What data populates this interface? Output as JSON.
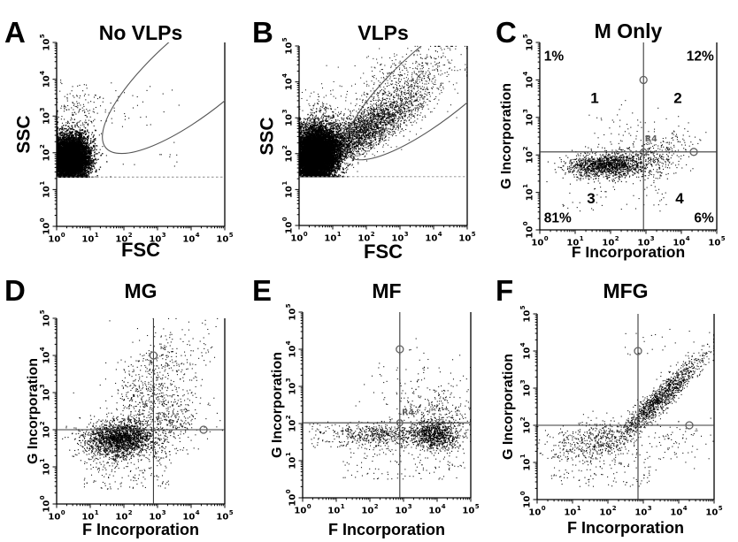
{
  "figure": {
    "background": "#ffffff",
    "ink": "#000000",
    "gate_curve_color": "#555555",
    "quadrant_line_color": "#3a3a3a",
    "dashed_line_color": "#8a8a8a",
    "handle_color": "#606060",
    "tick_base": "10",
    "tick_exponents": [
      "0",
      "1",
      "2",
      "3",
      "4",
      "5"
    ]
  },
  "chart_data": [
    {
      "id": "A",
      "panel_label": "A",
      "title": "No VLPs",
      "type": "scatter",
      "xlabel": "FSC",
      "ylabel": "SSC",
      "x_scale": "log",
      "y_scale": "log",
      "x_decades": [
        0,
        5
      ],
      "y_decades": [
        0,
        5
      ],
      "clusters": [
        {
          "name": "main-population-block",
          "n": 7000,
          "cx": 0.42,
          "cy": 1.85,
          "sx": 0.27,
          "sy": 0.3,
          "rho": 0,
          "size": 1.4
        },
        {
          "name": "above-population-scatter",
          "n": 280,
          "cx": 0.6,
          "cy": 2.8,
          "sx": 0.4,
          "sy": 0.55,
          "rho": 0,
          "size": 1.1
        },
        {
          "name": "sparse-mid-scatter",
          "n": 45,
          "uniform": true,
          "x0": 0.9,
          "x1": 3.7,
          "y0": 1.6,
          "y1": 3.9,
          "size": 1.1
        }
      ],
      "clamp_y_min": 1.34,
      "gates": {
        "ellipse": {
          "cx": 4.35,
          "cy": 4.35,
          "a": 3.6,
          "b": 1.15,
          "angle_deg": 40
        },
        "dashed_y": 1.34
      },
      "annotations": []
    },
    {
      "id": "B",
      "panel_label": "B",
      "title": "VLPs",
      "type": "scatter",
      "xlabel": "FSC",
      "ylabel": "SSC",
      "x_scale": "log",
      "y_scale": "log",
      "x_decades": [
        0,
        5
      ],
      "y_decades": [
        0,
        5
      ],
      "clusters": [
        {
          "name": "main-population-block",
          "n": 9000,
          "cx": 0.5,
          "cy": 1.95,
          "sx": 0.35,
          "sy": 0.38,
          "rho": 0.1,
          "size": 1.4
        },
        {
          "name": "diagonal-plume",
          "n": 3200,
          "cx": 1.85,
          "cy": 2.6,
          "sx": 0.85,
          "sy": 0.52,
          "rho": 0.8,
          "size": 1.05
        },
        {
          "name": "upper-right-scatter",
          "n": 650,
          "cx": 3.2,
          "cy": 3.95,
          "sx": 0.8,
          "sy": 0.55,
          "rho": 0.5,
          "size": 1.05
        },
        {
          "name": "left-upper-scatter",
          "n": 180,
          "cx": 0.7,
          "cy": 2.95,
          "sx": 0.35,
          "sy": 0.5,
          "rho": 0,
          "size": 1.05
        }
      ],
      "clamp_y_min": 1.36,
      "gates": {
        "ellipse": {
          "cx": 4.3,
          "cy": 4.2,
          "a": 3.6,
          "b": 1.05,
          "angle_deg": 40
        },
        "dashed_y": 1.36
      },
      "annotations": []
    },
    {
      "id": "C",
      "panel_label": "C",
      "title": "M Only",
      "type": "scatter",
      "xlabel": "F Incorporation",
      "ylabel": "G Incorporation",
      "x_scale": "log",
      "y_scale": "log",
      "x_decades": [
        0,
        5
      ],
      "y_decades": [
        0,
        5
      ],
      "clusters": [
        {
          "name": "main-band",
          "n": 1500,
          "cx": 1.95,
          "cy": 1.72,
          "sx": 0.55,
          "sy": 0.17,
          "rho": 0.12,
          "size": 1.15
        },
        {
          "name": "right-extension",
          "n": 270,
          "cx": 3.35,
          "cy": 2.0,
          "sx": 0.5,
          "sy": 0.35,
          "rho": 0.45,
          "size": 1.1
        },
        {
          "name": "upper-scatter",
          "n": 70,
          "cx": 2.6,
          "cy": 2.6,
          "sx": 0.65,
          "sy": 0.4,
          "rho": 0.2,
          "size": 1.1
        },
        {
          "name": "lower-scatter",
          "n": 60,
          "uniform": true,
          "x0": 0.6,
          "x1": 3.6,
          "y0": 0.5,
          "y1": 1.45,
          "size": 1.1
        }
      ],
      "gates": {
        "quadrant": {
          "x": 2.93,
          "y": 2.08,
          "handles": [
            [
              2.93,
              4.0
            ],
            [
              4.35,
              2.08
            ]
          ],
          "intersection_circle": true,
          "region_label": {
            "text": "R4",
            "x": 2.97,
            "y": 2.42
          }
        }
      },
      "annotations": [
        {
          "text": "1%",
          "x": 0.12,
          "y": 4.62,
          "size": 15.5,
          "align": "left"
        },
        {
          "text": "12%",
          "x": 4.92,
          "y": 4.62,
          "size": 15.5,
          "align": "right"
        },
        {
          "text": "81%",
          "x": 0.12,
          "y": 0.3,
          "size": 15.5,
          "align": "left"
        },
        {
          "text": "6%",
          "x": 4.92,
          "y": 0.3,
          "size": 15.5,
          "align": "right"
        },
        {
          "text": "1",
          "x": 1.55,
          "y": 3.5,
          "size": 17,
          "align": "center"
        },
        {
          "text": "2",
          "x": 3.9,
          "y": 3.5,
          "size": 17,
          "align": "center"
        },
        {
          "text": "3",
          "x": 1.45,
          "y": 0.82,
          "size": 17,
          "align": "center"
        },
        {
          "text": "4",
          "x": 3.95,
          "y": 0.82,
          "size": 17,
          "align": "center"
        }
      ]
    },
    {
      "id": "D",
      "panel_label": "D",
      "title": "MG",
      "type": "scatter",
      "xlabel": "F Incorporation",
      "ylabel": "G Incorporation",
      "x_scale": "log",
      "y_scale": "log",
      "x_decades": [
        0,
        5
      ],
      "y_decades": [
        0,
        5
      ],
      "clusters": [
        {
          "name": "main-population",
          "n": 2100,
          "cx": 1.9,
          "cy": 1.75,
          "sx": 0.52,
          "sy": 0.24,
          "rho": 0.05,
          "size": 1.15
        },
        {
          "name": "upper-plume",
          "n": 650,
          "cx": 2.85,
          "cy": 3.05,
          "sx": 0.62,
          "sy": 0.72,
          "rho": 0.3,
          "size": 1.1
        },
        {
          "name": "mid-right-scatter",
          "n": 260,
          "cx": 3.3,
          "cy": 2.2,
          "sx": 0.55,
          "sy": 0.45,
          "rho": 0.2,
          "size": 1.1
        },
        {
          "name": "lower-scatter",
          "n": 170,
          "uniform": true,
          "x0": 0.8,
          "x1": 3.4,
          "y0": 0.4,
          "y1": 1.5,
          "size": 1.1
        },
        {
          "name": "top-right-sparse",
          "n": 60,
          "cx": 4.0,
          "cy": 4.2,
          "sx": 0.5,
          "sy": 0.4,
          "rho": 0.2,
          "size": 1.1
        }
      ],
      "gates": {
        "quadrant": {
          "x": 2.88,
          "y": 2.0,
          "handles": [
            [
              2.88,
              4.0
            ],
            [
              4.37,
              2.0
            ]
          ]
        }
      },
      "annotations": []
    },
    {
      "id": "E",
      "panel_label": "E",
      "title": "MF",
      "type": "scatter",
      "xlabel": "F Incorporation",
      "ylabel": "G Incorporation",
      "x_scale": "log",
      "y_scale": "log",
      "x_decades": [
        0,
        5
      ],
      "y_decades": [
        0,
        5
      ],
      "clusters": [
        {
          "name": "dense-right-blob",
          "n": 900,
          "cx": 3.9,
          "cy": 1.7,
          "sx": 0.38,
          "sy": 0.2,
          "rho": 0,
          "size": 1.15
        },
        {
          "name": "left-band",
          "n": 520,
          "cx": 2.3,
          "cy": 1.7,
          "sx": 0.65,
          "sy": 0.16,
          "rho": 0,
          "size": 1.1
        },
        {
          "name": "above-line-right",
          "n": 270,
          "cx": 3.95,
          "cy": 2.25,
          "sx": 0.5,
          "sy": 0.35,
          "rho": 0.15,
          "size": 1.1
        },
        {
          "name": "upper-sparse",
          "n": 90,
          "cx": 3.3,
          "cy": 2.95,
          "sx": 0.7,
          "sy": 0.45,
          "rho": 0.2,
          "size": 1.1
        },
        {
          "name": "lower-scatter",
          "n": 140,
          "uniform": true,
          "x0": 1.2,
          "x1": 4.9,
          "y0": 0.5,
          "y1": 1.45,
          "size": 1.1
        },
        {
          "name": "far-left-sparse",
          "n": 60,
          "uniform": true,
          "x0": 0.2,
          "x1": 1.6,
          "y0": 1.35,
          "y1": 2.0,
          "size": 1.1
        }
      ],
      "gates": {
        "quadrant": {
          "x": 2.89,
          "y": 2.02,
          "handles": [
            [
              2.89,
              4.0
            ]
          ],
          "intersection_circle": true,
          "region_label": {
            "text": "R4",
            "x": 2.95,
            "y": 2.28
          }
        }
      },
      "annotations": []
    },
    {
      "id": "F",
      "panel_label": "F",
      "title": "MFG",
      "type": "scatter",
      "xlabel": "F Incorporation",
      "ylabel": "G Incorporation",
      "x_scale": "log",
      "y_scale": "log",
      "x_decades": [
        0,
        5
      ],
      "y_decades": [
        0,
        5
      ],
      "clusters": [
        {
          "name": "diagonal-band",
          "n": 1300,
          "cx": 3.5,
          "cy": 2.75,
          "sx": 0.62,
          "sy": 0.58,
          "rho": 0.94,
          "size": 1.1
        },
        {
          "name": "lower-left-cloud",
          "n": 520,
          "cx": 1.7,
          "cy": 1.6,
          "sx": 0.65,
          "sy": 0.28,
          "rho": 0.25,
          "size": 1.1
        },
        {
          "name": "lower-scatter",
          "n": 130,
          "uniform": true,
          "x0": 0.4,
          "x1": 3.2,
          "y0": 0.35,
          "y1": 1.35,
          "size": 1.1
        },
        {
          "name": "right-below-line",
          "n": 80,
          "cx": 3.9,
          "cy": 1.6,
          "sx": 0.5,
          "sy": 0.4,
          "rho": 0,
          "size": 1.1
        },
        {
          "name": "top-sparse",
          "n": 18,
          "uniform": true,
          "x0": 2.3,
          "x1": 4.4,
          "y0": 3.9,
          "y1": 4.6,
          "size": 1.1
        }
      ],
      "gates": {
        "quadrant": {
          "x": 2.85,
          "y": 2.0,
          "handles": [
            [
              2.85,
              4.0
            ],
            [
              4.3,
              2.0
            ]
          ]
        }
      },
      "annotations": []
    }
  ]
}
